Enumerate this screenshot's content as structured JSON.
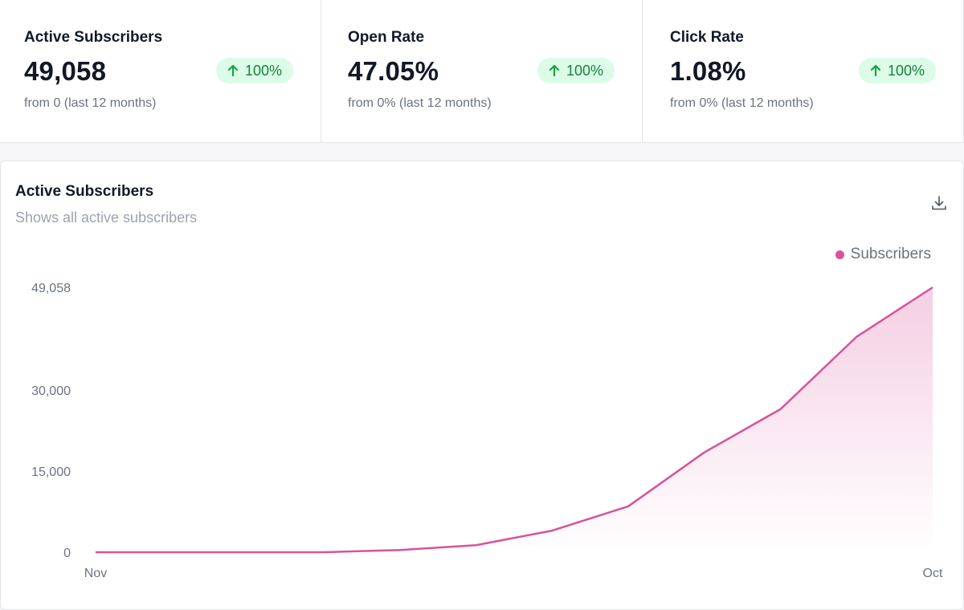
{
  "stats": [
    {
      "label": "Active Subscribers",
      "value": "49,058",
      "change": "100%",
      "subtitle": "from 0 (last 12 months)"
    },
    {
      "label": "Open Rate",
      "value": "47.05%",
      "change": "100%",
      "subtitle": "from 0% (last 12 months)"
    },
    {
      "label": "Click Rate",
      "value": "1.08%",
      "change": "100%",
      "subtitle": "from 0% (last 12 months)"
    }
  ],
  "colors": {
    "accent": "#d9529a",
    "badge_bg": "#dcfce7",
    "badge_fg": "#15803d"
  },
  "chart": {
    "title": "Active Subscribers",
    "subtitle": "Shows all active subscribers",
    "download_icon": "download-icon"
  },
  "chart_data": {
    "type": "area",
    "title": "Active Subscribers",
    "legend": [
      "Subscribers"
    ],
    "legend_position": "top-right",
    "x_tick_labels": [
      "Nov",
      "Oct"
    ],
    "y_ticks": [
      0,
      15000,
      30000,
      49058
    ],
    "y_tick_labels": [
      "0",
      "15,000",
      "30,000",
      "49,058"
    ],
    "ylim": [
      0,
      49058
    ],
    "grid": false,
    "series": [
      {
        "name": "Subscribers",
        "values": [
          0,
          0,
          0,
          0,
          400,
          1300,
          4000,
          8500,
          18500,
          26500,
          39900,
          49058
        ]
      }
    ]
  }
}
